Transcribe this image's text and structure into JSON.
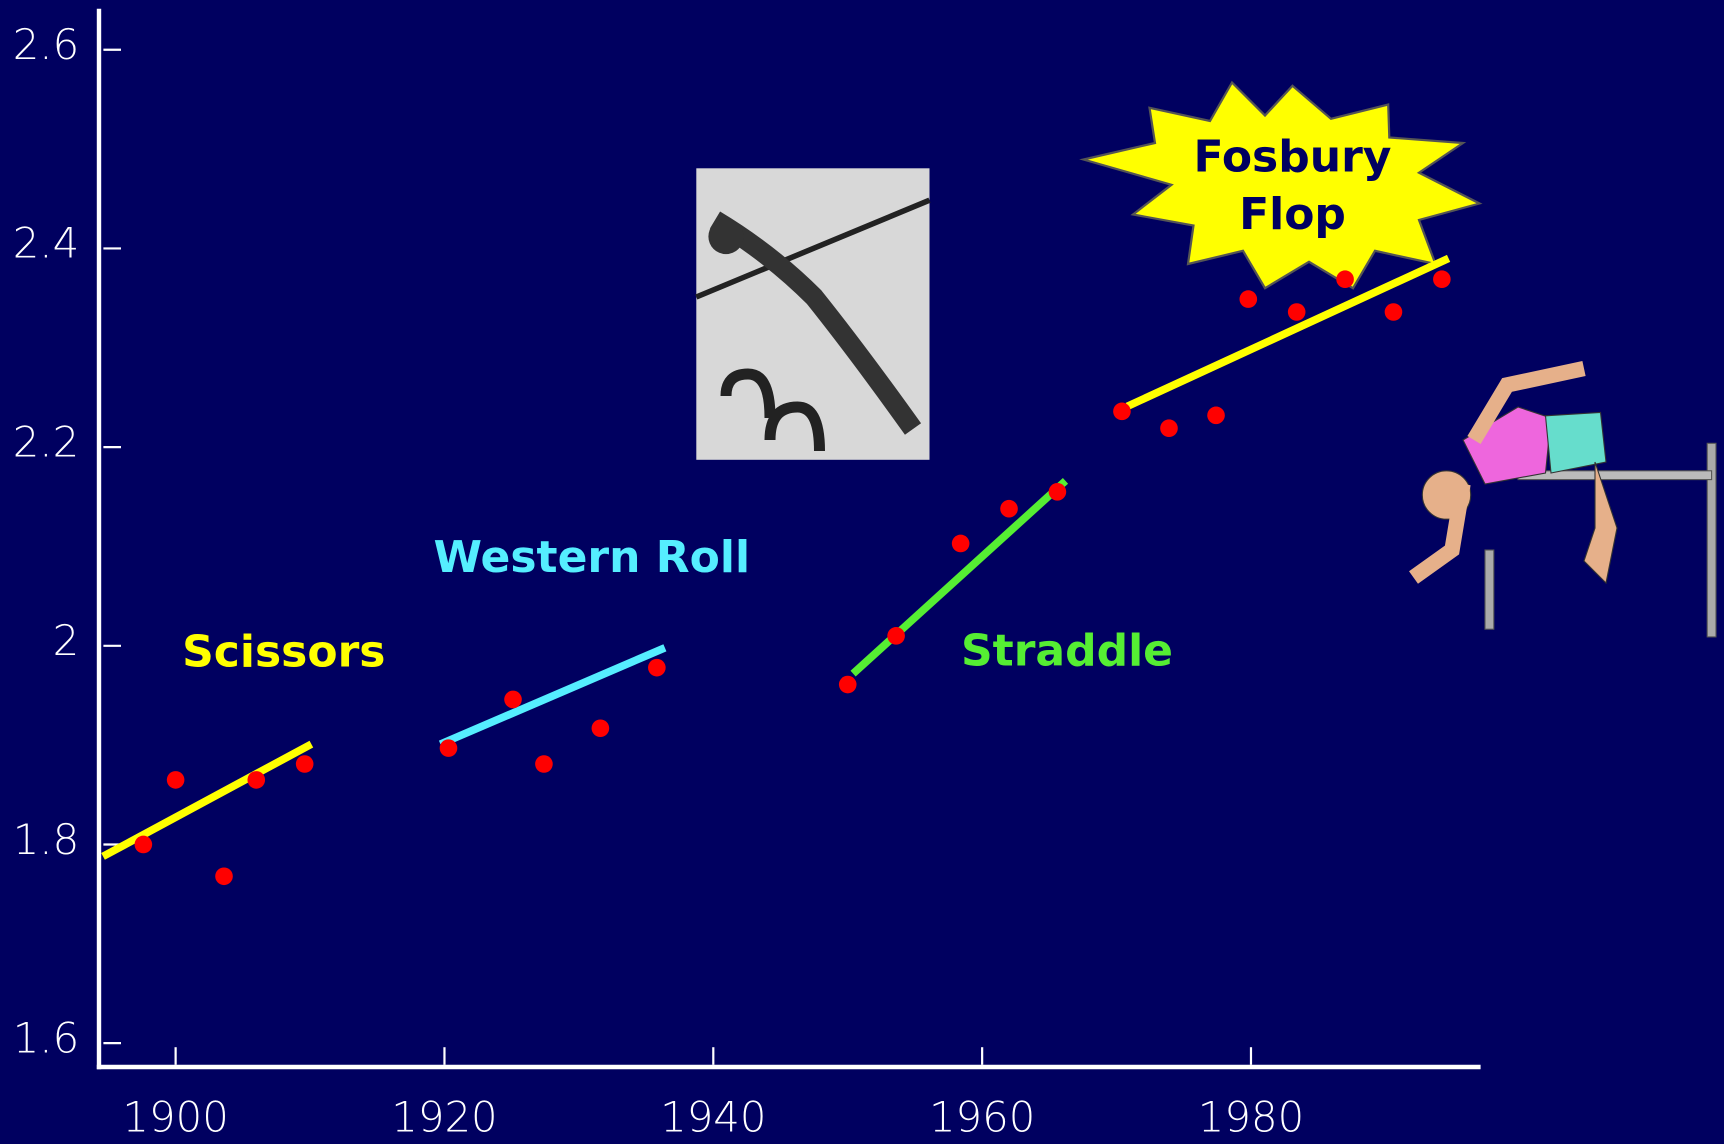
{
  "chart_data": {
    "type": "scatter",
    "x": [
      1897.6,
      1900.0,
      1903.6,
      1906.0,
      1909.6,
      1920.3,
      1925.1,
      1927.4,
      1931.6,
      1935.8,
      1950.0,
      1953.6,
      1958.4,
      1962.0,
      1965.6,
      1970.4,
      1973.9,
      1977.4,
      1979.8,
      1983.4,
      1987.0,
      1990.6,
      1994.2
    ],
    "values": [
      1.8,
      1.865,
      1.768,
      1.865,
      1.881,
      1.897,
      1.946,
      1.881,
      1.917,
      1.978,
      1.961,
      2.01,
      2.103,
      2.138,
      2.155,
      2.236,
      2.219,
      2.232,
      2.349,
      2.336,
      2.369,
      2.336,
      2.369
    ],
    "color": "#ff0000",
    "trend_lines": [
      {
        "label": "Scissors",
        "color": "#ffff00",
        "x": [
          1894.6,
          1910.1
        ],
        "values": [
          1.788,
          1.901
        ]
      },
      {
        "label": "Western Roll",
        "color": "#55eeff",
        "x": [
          1919.7,
          1936.4
        ],
        "values": [
          1.901,
          1.998
        ]
      },
      {
        "label": "Straddle",
        "color": "#55ee33",
        "x": [
          1950.4,
          1966.2
        ],
        "values": [
          1.972,
          2.166
        ]
      },
      {
        "label": "Fosbury Flop",
        "color": "#ffff00",
        "x": [
          1970.8,
          1994.7
        ],
        "values": [
          2.241,
          2.39
        ]
      }
    ],
    "xlim": [
      1894.3,
      1997
    ],
    "xticks": [
      1900,
      1920,
      1940,
      1960,
      1980
    ],
    "ylim": [
      1.576,
      2.639
    ],
    "yticks": [
      {
        "value": 1.6,
        "label": "1.6"
      },
      {
        "value": 1.8,
        "label": "1.8"
      },
      2,
      {
        "value": 2.2,
        "label": "2.2"
      },
      {
        "value": 2.4,
        "label": "2.4"
      },
      {
        "value": 2.6,
        "label": "2.6"
      }
    ]
  }
}
